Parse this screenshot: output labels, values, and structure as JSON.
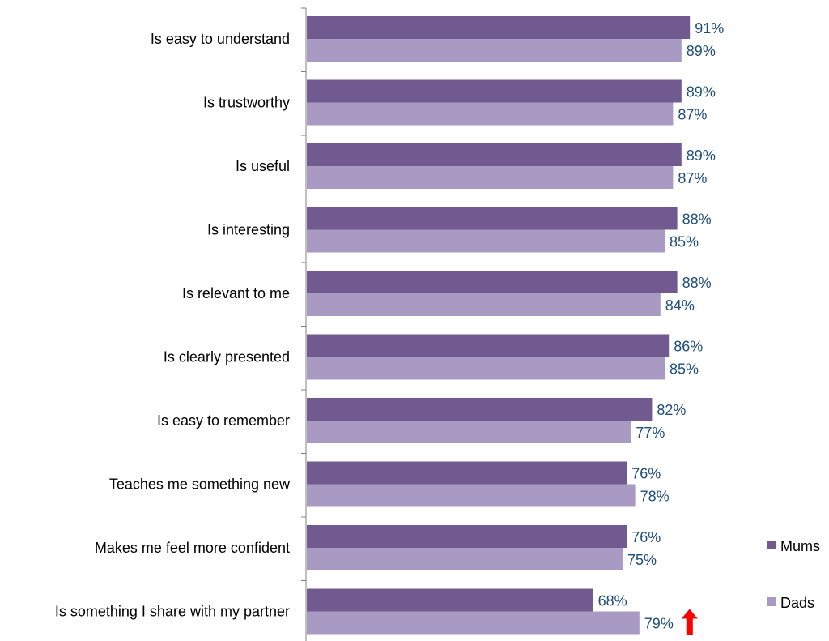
{
  "chart_data": {
    "type": "bar",
    "orientation": "horizontal",
    "categories": [
      "Is easy to understand",
      "Is trustworthy",
      "Is useful",
      "Is interesting",
      "Is relevant to me",
      "Is clearly presented",
      "Is easy to remember",
      "Teaches me something new",
      "Makes me feel more confident",
      "Is something I share with my partner"
    ],
    "series": [
      {
        "name": "Mums",
        "values": [
          91,
          89,
          89,
          88,
          88,
          86,
          82,
          76,
          76,
          68
        ],
        "labels": [
          "91%",
          "89%",
          "89%",
          "88%",
          "88%",
          "86%",
          "82%",
          "76%",
          "76%",
          "68%"
        ]
      },
      {
        "name": "Dads",
        "values": [
          89,
          87,
          87,
          85,
          84,
          85,
          77,
          78,
          75,
          79
        ],
        "labels": [
          "89%",
          "87%",
          "87%",
          "85%",
          "84%",
          "85%",
          "77%",
          "78%",
          "75%",
          "79%"
        ]
      }
    ],
    "xlim": [
      0,
      100
    ],
    "grid": false,
    "legend_position": "right",
    "annotations": [
      {
        "type": "up-arrow",
        "category_index": 9,
        "series": "Dads"
      }
    ]
  },
  "colors": {
    "mums": "#705a8f",
    "dads": "#a99ac4",
    "value_label": "#1f4e79",
    "arrow": "#ff0000",
    "axis": "#808080"
  },
  "icons": {
    "annotation": "up-arrow-icon"
  }
}
